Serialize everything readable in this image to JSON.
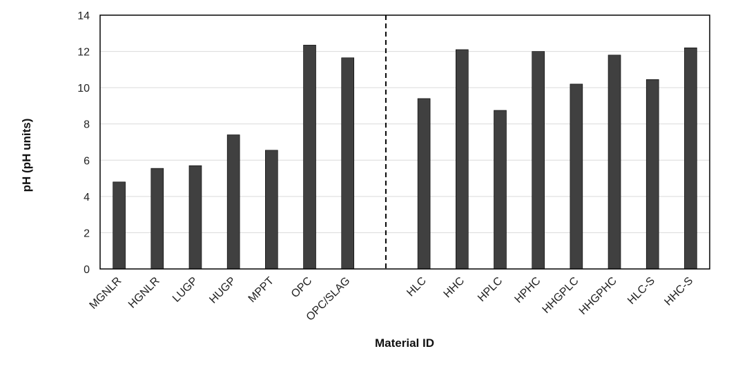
{
  "chart_data": {
    "type": "bar",
    "title": "",
    "xlabel": "Material ID",
    "ylabel": "pH (pH units)",
    "ylim": [
      0,
      14
    ],
    "yticks": [
      0,
      2,
      4,
      6,
      8,
      10,
      12,
      14
    ],
    "grid": true,
    "legend": "none",
    "bar_color": "#404040",
    "categories": [
      "MGNLR",
      "HGNLR",
      "LUGP",
      "HUGP",
      "MPPT",
      "OPC",
      "OPC/SLAG",
      "",
      "HLC",
      "HHC",
      "HPLC",
      "HPHC",
      "HHGPLC",
      "HHGPHC",
      "HLC-S",
      "HHC-S"
    ],
    "values": [
      4.8,
      5.55,
      5.7,
      7.4,
      6.55,
      12.35,
      11.65,
      null,
      9.4,
      12.1,
      8.75,
      12.0,
      10.2,
      11.8,
      10.45,
      12.2
    ],
    "divider": {
      "style": "dashed",
      "after_category_index": 6
    }
  }
}
